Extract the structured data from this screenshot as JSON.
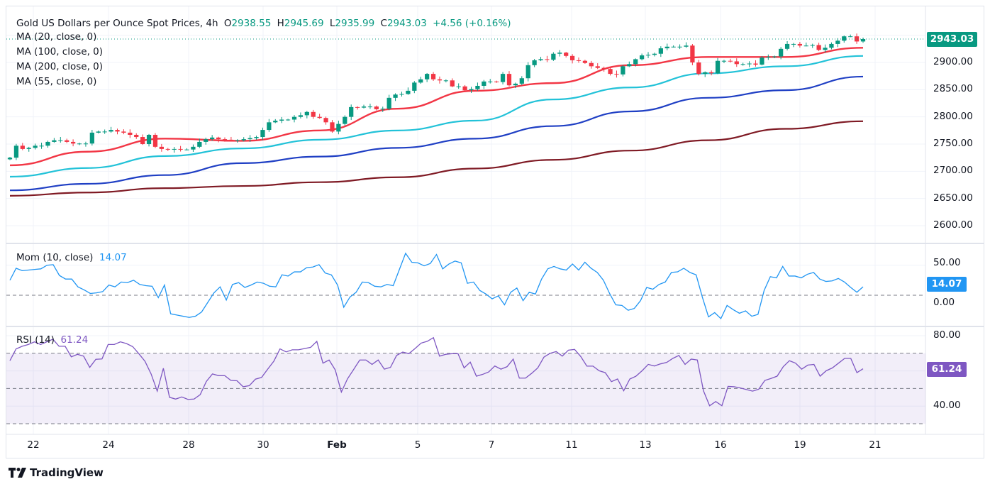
{
  "header": {
    "symbol_title": "Gold US Dollars per Ounce Spot Prices, 4h",
    "open_label": "O",
    "open": "2938.55",
    "high_label": "H",
    "high": "2945.69",
    "low_label": "L",
    "low": "2935.99",
    "close_label": "C",
    "close": "2943.03",
    "change": "+4.56 (+0.16%)"
  },
  "indicators": {
    "ma20": "MA (20, close, 0)",
    "ma100": "MA (100, close, 0)",
    "ma200": "MA (200, close, 0)",
    "ma55": "MA (55, close, 0)",
    "mom_title": "Mom (10, close)",
    "mom_value": "14.07",
    "rsi_title": "RSI (14)",
    "rsi_value": "61.24"
  },
  "price_axis": [
    "2900.00",
    "2850.00",
    "2800.00",
    "2750.00",
    "2700.00",
    "2650.00",
    "2600.00"
  ],
  "mom_axis": [
    "50.00",
    "0.00"
  ],
  "rsi_axis": [
    "80.00",
    "40.00"
  ],
  "last_price_badge": "2943.03",
  "x_axis": [
    "22",
    "24",
    "28",
    "30",
    "Feb",
    "5",
    "7",
    "11",
    "13",
    "16",
    "19",
    "21"
  ],
  "branding": "TradingView",
  "colors": {
    "up": "#089981",
    "down": "#f23645",
    "ma20": "#f23645",
    "ma55": "#22c2d8",
    "ma100": "#1f3fc4",
    "ma200": "#7f1a24",
    "mom": "#2196f3",
    "rsi": "#7e57c2"
  },
  "chart_data": [
    {
      "type": "candlestick",
      "title": "Gold US Dollars per Ounce Spot Prices, 4h",
      "ylim": [
        2570,
        2960
      ],
      "last": {
        "open": 2938.55,
        "high": 2945.69,
        "low": 2935.99,
        "close": 2943.03
      },
      "closes": [
        2725,
        2747,
        2741,
        2743,
        2747,
        2747,
        2754,
        2757,
        2757,
        2754,
        2751,
        2751,
        2751,
        2771,
        2773,
        2773,
        2776,
        2773,
        2771,
        2767,
        2763,
        2750,
        2767,
        2745,
        2741,
        2740,
        2741,
        2740,
        2740,
        2745,
        2754,
        2759,
        2762,
        2759,
        2758,
        2757,
        2757,
        2759,
        2761,
        2763,
        2776,
        2790,
        2793,
        2795,
        2795,
        2800,
        2803,
        2809,
        2800,
        2798,
        2790,
        2773,
        2787,
        2800,
        2818,
        2817,
        2819,
        2819,
        2814,
        2815,
        2835,
        2841,
        2842,
        2848,
        2863,
        2869,
        2879,
        2869,
        2867,
        2867,
        2856,
        2856,
        2849,
        2851,
        2857,
        2865,
        2865,
        2864,
        2879,
        2858,
        2861,
        2871,
        2895,
        2904,
        2906,
        2905,
        2916,
        2918,
        2912,
        2904,
        2903,
        2899,
        2893,
        2890,
        2888,
        2879,
        2878,
        2893,
        2897,
        2906,
        2913,
        2914,
        2916,
        2926,
        2929,
        2929,
        2929,
        2931,
        2900,
        2879,
        2882,
        2880,
        2903,
        2903,
        2902,
        2897,
        2897,
        2898,
        2896,
        2909,
        2910,
        2911,
        2925,
        2934,
        2934,
        2931,
        2931,
        2932,
        2923,
        2927,
        2934,
        2940,
        2948,
        2948,
        2938.55,
        2943.03
      ],
      "moving_averages": {
        "ma20": [
          2711,
          2736,
          2760,
          2756,
          2775,
          2815,
          2848,
          2862,
          2895,
          2910,
          2910,
          2927
        ],
        "ma55": [
          2690,
          2706,
          2728,
          2742,
          2758,
          2775,
          2793,
          2832,
          2854,
          2880,
          2893,
          2912
        ],
        "ma100": [
          2665,
          2677,
          2693,
          2715,
          2727,
          2743,
          2760,
          2783,
          2810,
          2835,
          2849,
          2874
        ],
        "ma200": [
          2655,
          2661,
          2669,
          2673,
          2680,
          2689,
          2705,
          2721,
          2738,
          2757,
          2778,
          2792
        ]
      }
    },
    {
      "type": "line",
      "title": "Mom (10, close)",
      "ylim": [
        -50,
        68
      ],
      "reference_line": 0,
      "values": [
        25,
        45,
        41,
        42,
        43,
        44,
        50,
        51,
        33,
        27,
        27,
        14,
        9,
        3,
        4,
        6,
        17,
        14,
        22,
        21,
        25,
        18,
        16,
        15,
        -4,
        17,
        -31,
        -33,
        -35,
        -37,
        -35,
        -28,
        -12,
        4,
        14,
        -8,
        18,
        21,
        13,
        17,
        22,
        20,
        15,
        14,
        34,
        32,
        39,
        39,
        46,
        47,
        51,
        37,
        34,
        17,
        -20,
        -3,
        5,
        22,
        21,
        15,
        14,
        18,
        16,
        43,
        70,
        55,
        54,
        49,
        53,
        68,
        44,
        52,
        57,
        54,
        20,
        22,
        8,
        2,
        -6,
        -1,
        -16,
        5,
        12,
        -9,
        5,
        2,
        27,
        44,
        48,
        44,
        42,
        52,
        42,
        55,
        45,
        38,
        25,
        3,
        -16,
        -17,
        -25,
        -22,
        -9,
        13,
        10,
        18,
        22,
        38,
        39,
        45,
        38,
        34,
        -3,
        -36,
        -29,
        -39,
        -17,
        -24,
        -30,
        -26,
        -35,
        -32,
        8,
        31,
        29,
        48,
        32,
        32,
        29,
        35,
        38,
        27,
        23,
        24,
        28,
        22,
        13,
        5,
        14.07
      ]
    },
    {
      "type": "line",
      "title": "RSI (14)",
      "ylim": [
        25,
        85
      ],
      "band": [
        30,
        70
      ],
      "mid_line": 50,
      "values": [
        65.8,
        72.5,
        74,
        75,
        76.5,
        75,
        76.5,
        78,
        74,
        74,
        68,
        69.4,
        68.4,
        62,
        66.6,
        66.8,
        75,
        75,
        76.5,
        75.5,
        73.8,
        69.8,
        65.5,
        58.3,
        48.5,
        61.5,
        45,
        44,
        45.2,
        43.8,
        44,
        46.5,
        54,
        58.3,
        57.3,
        57.3,
        54.6,
        54.4,
        51,
        51.6,
        55.3,
        56.3,
        61,
        65.5,
        72.5,
        70.8,
        72,
        72,
        72.7,
        73.4,
        76.8,
        64.4,
        66.2,
        60.6,
        48,
        55.5,
        60.8,
        66.2,
        66.2,
        63.7,
        66.2,
        61,
        62,
        68.8,
        70.7,
        69.8,
        72.7,
        75.8,
        76.8,
        78.9,
        68.4,
        69.4,
        69.8,
        69.8,
        61.7,
        65,
        57,
        58,
        59.4,
        62.8,
        61,
        62.4,
        66.7,
        55.9,
        55.9,
        58.6,
        61.7,
        67.8,
        70,
        71,
        68.4,
        71.8,
        72.2,
        68.2,
        62.7,
        62.7,
        60.1,
        59,
        53.9,
        55.4,
        48.7,
        55.4,
        57,
        60.1,
        63.7,
        62.8,
        64,
        64.8,
        67.1,
        68.8,
        63.7,
        66.7,
        66.2,
        48.7,
        40.2,
        42.6,
        40.2,
        51.2,
        51,
        50.3,
        49.4,
        48.5,
        49.6,
        54.6,
        55.7,
        57,
        62.4,
        65.8,
        64.4,
        61,
        63.3,
        63.7,
        57,
        60.1,
        61.7,
        64.4,
        67.1,
        67.1,
        59,
        61.24
      ]
    }
  ]
}
